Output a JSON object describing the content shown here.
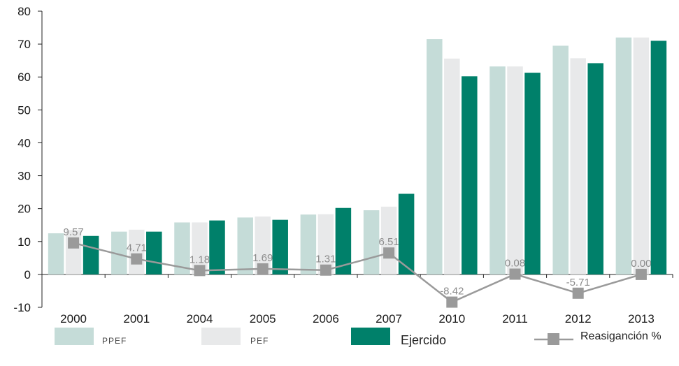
{
  "chart_data": {
    "type": "bar",
    "categories": [
      "2000",
      "2001",
      "2004",
      "2005",
      "2006",
      "2007",
      "2010",
      "2011",
      "2012",
      "2013"
    ],
    "ylim": [
      -10,
      80
    ],
    "yticks": [
      -10,
      0,
      10,
      20,
      30,
      40,
      50,
      60,
      70,
      80
    ],
    "grid": false,
    "legend_position": "bottom",
    "series": [
      {
        "name": "PPEF",
        "kind": "bar",
        "color": "#c5dcd8",
        "values": [
          12.5,
          13,
          15.8,
          17.3,
          18.2,
          19.5,
          71.5,
          63.2,
          69.5,
          72
        ]
      },
      {
        "name": "PEF",
        "kind": "bar",
        "color": "#e8e9ea",
        "values": [
          13.5,
          13.6,
          15.8,
          17.6,
          18.3,
          20.6,
          65.6,
          63.2,
          65.7,
          72
        ]
      },
      {
        "name": "Ejercido",
        "kind": "bar",
        "color": "#00806a",
        "values": [
          11.7,
          13,
          16.4,
          16.6,
          20.2,
          24.5,
          60.2,
          61.3,
          64.2,
          71
        ]
      },
      {
        "name": "Reasigancion %",
        "kind": "line",
        "color": "#9a9a9a",
        "values": [
          9.57,
          4.71,
          1.18,
          1.69,
          1.31,
          6.51,
          -8.42,
          0.08,
          -5.71,
          0.0
        ],
        "labels": [
          "9.57",
          "4.71",
          "1.18",
          "1.69",
          "1.31",
          "6.51",
          "-8.42",
          "0.08",
          "-5.71",
          "0.00"
        ]
      }
    ],
    "legend": {
      "ppef": "PPEF",
      "pef": "PEF",
      "ejercido": "Ejercido",
      "reasignacion": "Reasiganción %"
    }
  }
}
